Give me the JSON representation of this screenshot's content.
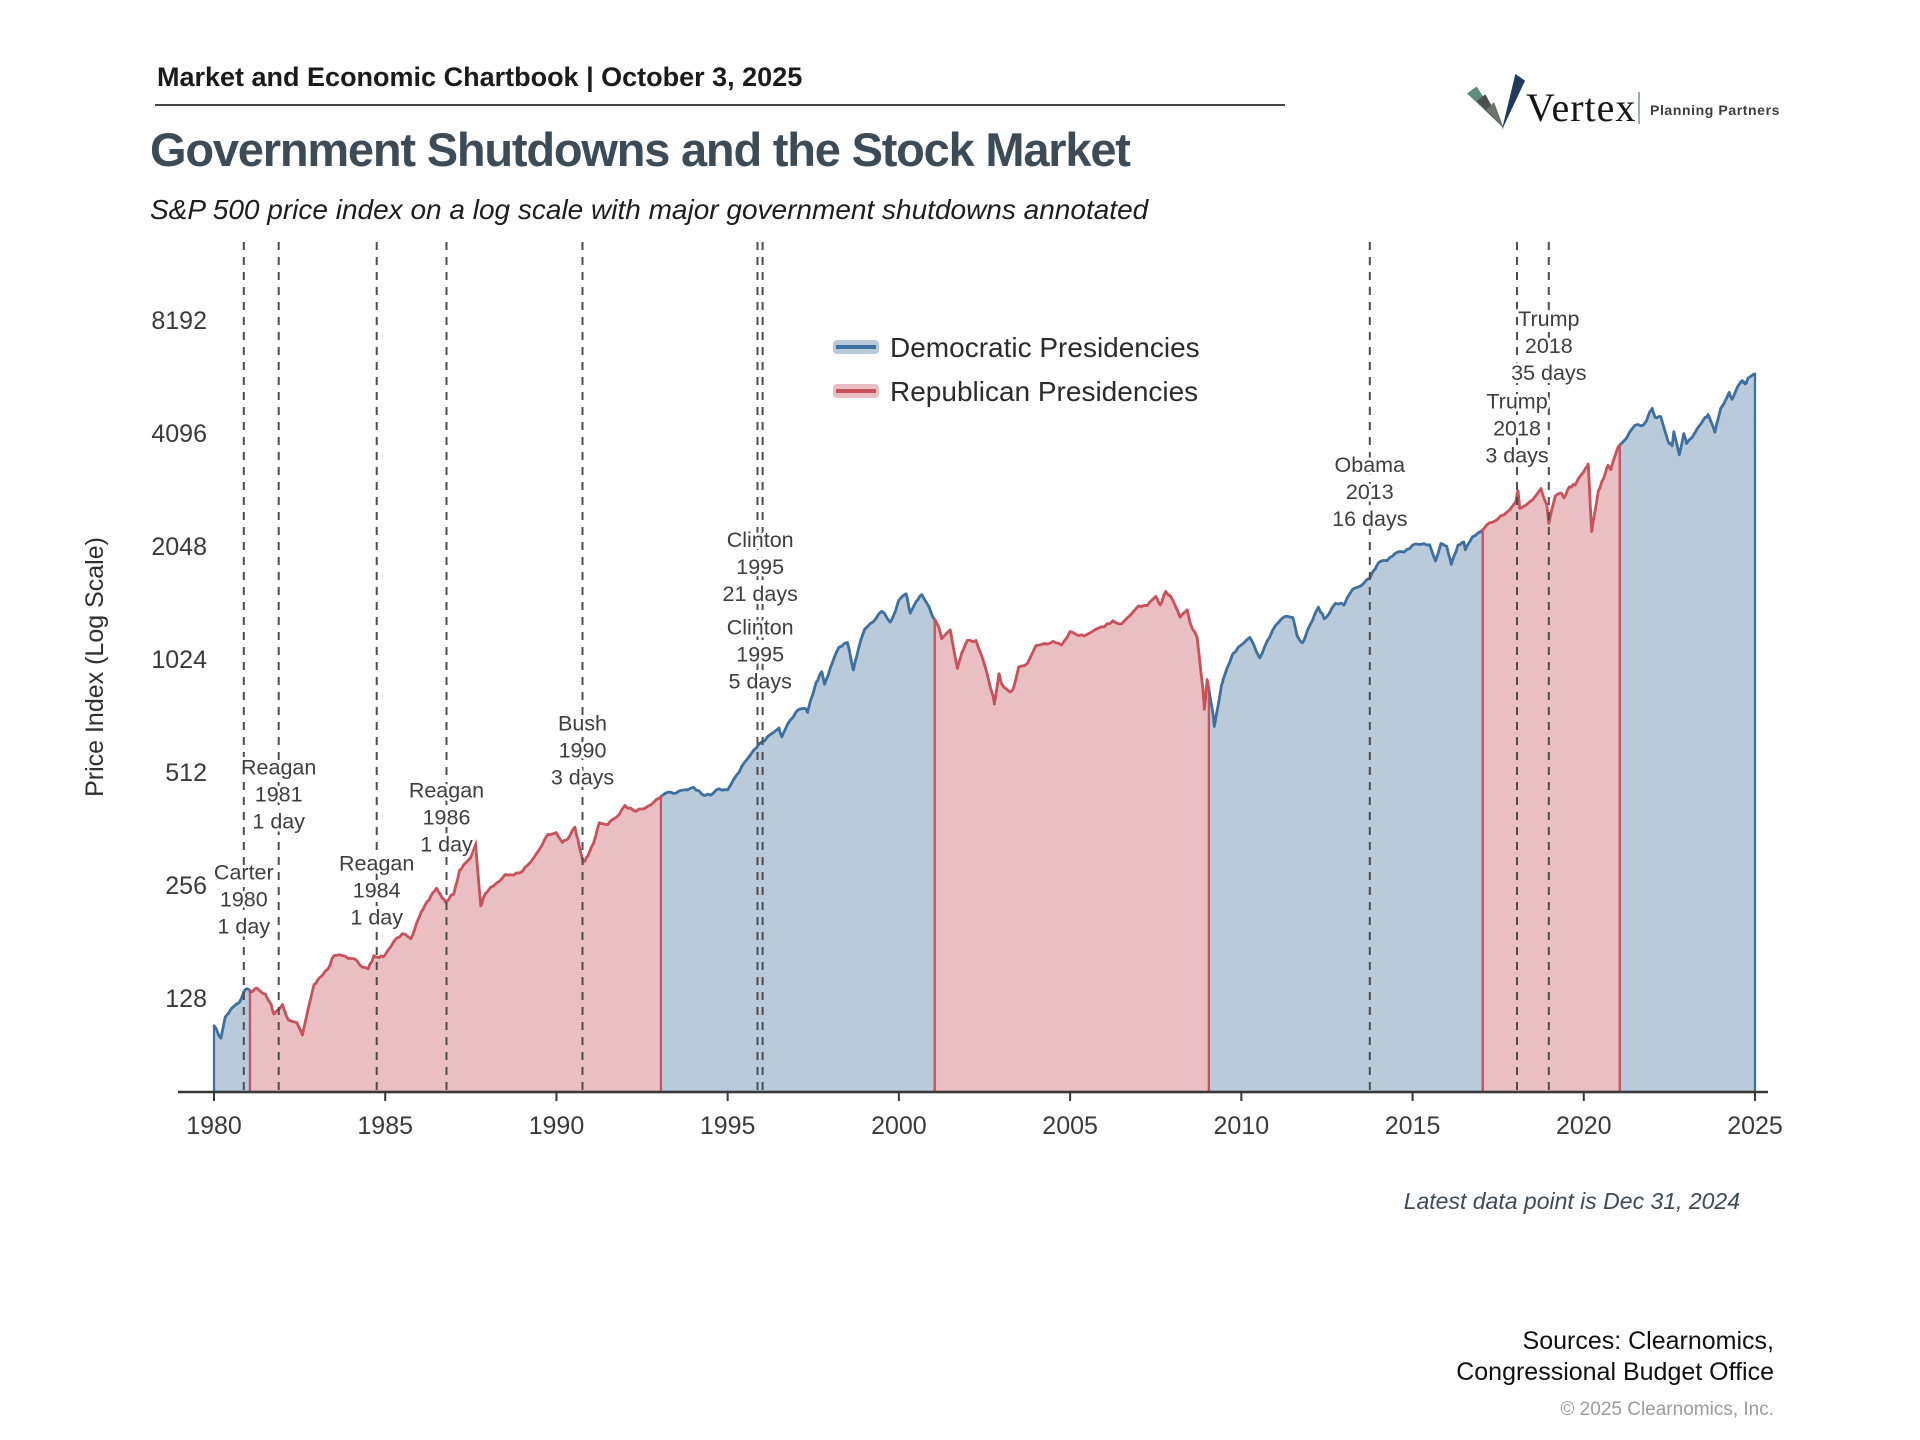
{
  "header": {
    "chartbook_title": "Market and Economic Chartbook | October 3, 2025"
  },
  "logo": {
    "brand": "Vertex",
    "tagline": "Planning Partners"
  },
  "title": "Government Shutdowns and the Stock Market",
  "subtitle": "S&P 500 price index on a log scale with major government shutdowns annotated",
  "footnote": "Latest data point is Dec 31, 2024",
  "sources": {
    "line1": "Sources: Clearnomics,",
    "line2": "Congressional Budget Office",
    "copyright": "© 2025 Clearnomics, Inc."
  },
  "colors": {
    "dem_line": "#3f6f9e",
    "dem_fill": "#b9cada",
    "rep_line": "#c8515a",
    "rep_fill": "#eabfc1",
    "dashed_line": "#4d4d4d",
    "axis": "#383838",
    "title_text": "#3d4b57"
  },
  "chart_data": {
    "type": "area",
    "title": "Government Shutdowns and the Stock Market",
    "subtitle": "S&P 500 price index on a log scale with major government shutdowns annotated",
    "ylabel": "Price Index (Log Scale)",
    "xlabel": "",
    "log_scale": true,
    "grid": false,
    "legend_position": "upper-center-inside",
    "y_ticks": [
      8192,
      4096,
      2048,
      1024,
      512,
      256,
      128
    ],
    "x_ticks": [
      1980,
      1985,
      1990,
      1995,
      2000,
      2005,
      2010,
      2015,
      2020,
      2025
    ],
    "x_range": [
      1980,
      2025
    ],
    "legend": [
      {
        "party": "dem",
        "label": "Democratic Presidencies"
      },
      {
        "party": "rep",
        "label": "Republican Presidencies"
      }
    ],
    "party_periods": [
      {
        "party": "dem",
        "start": 1980.0,
        "end": 1981.05
      },
      {
        "party": "rep",
        "start": 1981.05,
        "end": 1993.05
      },
      {
        "party": "dem",
        "start": 1993.05,
        "end": 2001.05
      },
      {
        "party": "rep",
        "start": 2001.05,
        "end": 2009.05
      },
      {
        "party": "dem",
        "start": 2009.05,
        "end": 2017.05
      },
      {
        "party": "rep",
        "start": 2017.05,
        "end": 2021.05
      },
      {
        "party": "dem",
        "start": 2021.05,
        "end": 2025.0
      }
    ],
    "shutdowns": [
      {
        "president": "Carter",
        "year": "1980",
        "duration": "1 day",
        "line_year": 1980.87,
        "label_year": 1980.87,
        "label_value": 236
      },
      {
        "president": "Reagan",
        "year": "1981",
        "duration": "1 day",
        "line_year": 1981.89,
        "label_year": 1981.89,
        "label_value": 449
      },
      {
        "president": "Reagan",
        "year": "1984",
        "duration": "1 day",
        "line_year": 1984.75,
        "label_year": 1984.75,
        "label_value": 249
      },
      {
        "president": "Reagan",
        "year": "1986",
        "duration": "1 day",
        "line_year": 1986.79,
        "label_year": 1986.79,
        "label_value": 390
      },
      {
        "president": "Bush",
        "year": "1990",
        "duration": "3 days",
        "line_year": 1990.76,
        "label_year": 1990.76,
        "label_value": 587
      },
      {
        "president": "Clinton",
        "year": "1995",
        "duration": "21 days",
        "line_year": 1996.02,
        "label_year": 1995.95,
        "label_value": 1810
      },
      {
        "president": "Clinton",
        "year": "1995",
        "duration": "5 days",
        "line_year": 1995.87,
        "label_year": 1995.95,
        "label_value": 1060
      },
      {
        "president": "Obama",
        "year": "2013",
        "duration": "16 days",
        "line_year": 2013.75,
        "label_year": 2013.75,
        "label_value": 2870
      },
      {
        "president": "Trump",
        "year": "2018",
        "duration": "3 days",
        "line_year": 2018.05,
        "label_year": 2018.05,
        "label_value": 4240
      },
      {
        "president": "Trump",
        "year": "2018",
        "duration": "35 days",
        "line_year": 2018.98,
        "label_year": 2018.98,
        "label_value": 7030
      }
    ],
    "latest_point_note": "Latest data point is Dec 31, 2024",
    "series": [
      [
        1980,
        108
      ],
      [
        1980.2,
        100
      ],
      [
        1980.33,
        114
      ],
      [
        1980.6,
        122
      ],
      [
        1980.75,
        125
      ],
      [
        1980.92,
        135
      ],
      [
        1981.08,
        133
      ],
      [
        1981.25,
        136
      ],
      [
        1981.5,
        131
      ],
      [
        1981.67,
        123
      ],
      [
        1981.75,
        116
      ],
      [
        1982,
        123
      ],
      [
        1982.17,
        112
      ],
      [
        1982.42,
        110
      ],
      [
        1982.58,
        102
      ],
      [
        1982.75,
        120
      ],
      [
        1982.92,
        139
      ],
      [
        1983.08,
        145
      ],
      [
        1983.33,
        153
      ],
      [
        1983.5,
        166
      ],
      [
        1983.75,
        166
      ],
      [
        1983.92,
        163
      ],
      [
        1984.08,
        163
      ],
      [
        1984.25,
        157
      ],
      [
        1984.5,
        153
      ],
      [
        1984.67,
        166
      ],
      [
        1984.83,
        164
      ],
      [
        1985,
        167
      ],
      [
        1985.25,
        181
      ],
      [
        1985.5,
        190
      ],
      [
        1985.75,
        184
      ],
      [
        1986,
        211
      ],
      [
        1986.17,
        227
      ],
      [
        1986.33,
        239
      ],
      [
        1986.5,
        251
      ],
      [
        1986.67,
        236
      ],
      [
        1986.75,
        231
      ],
      [
        1987,
        242
      ],
      [
        1987.17,
        280
      ],
      [
        1987.33,
        292
      ],
      [
        1987.5,
        303
      ],
      [
        1987.63,
        336
      ],
      [
        1987.79,
        225
      ],
      [
        1987.9,
        240
      ],
      [
        1988,
        247
      ],
      [
        1988.25,
        259
      ],
      [
        1988.5,
        273
      ],
      [
        1988.75,
        272
      ],
      [
        1989,
        278
      ],
      [
        1989.25,
        295
      ],
      [
        1989.5,
        318
      ],
      [
        1989.75,
        349
      ],
      [
        1990,
        353
      ],
      [
        1990.17,
        332
      ],
      [
        1990.33,
        339
      ],
      [
        1990.54,
        365
      ],
      [
        1990.67,
        323
      ],
      [
        1990.79,
        295
      ],
      [
        1990.92,
        306
      ],
      [
        1991.08,
        330
      ],
      [
        1991.25,
        375
      ],
      [
        1991.5,
        371
      ],
      [
        1991.75,
        388
      ],
      [
        1992,
        417
      ],
      [
        1992.25,
        404
      ],
      [
        1992.5,
        408
      ],
      [
        1992.75,
        418
      ],
      [
        1993,
        436
      ],
      [
        1993.25,
        452
      ],
      [
        1993.5,
        450
      ],
      [
        1993.75,
        459
      ],
      [
        1994,
        466
      ],
      [
        1994.25,
        446
      ],
      [
        1994.5,
        444
      ],
      [
        1994.75,
        462
      ],
      [
        1995,
        459
      ],
      [
        1995.25,
        501
      ],
      [
        1995.5,
        544
      ],
      [
        1995.75,
        584
      ],
      [
        1996,
        616
      ],
      [
        1996.25,
        645
      ],
      [
        1996.5,
        671
      ],
      [
        1996.58,
        635
      ],
      [
        1996.75,
        687
      ],
      [
        1997,
        741
      ],
      [
        1997.25,
        757
      ],
      [
        1997.33,
        738
      ],
      [
        1997.58,
        885
      ],
      [
        1997.75,
        947
      ],
      [
        1997.83,
        877
      ],
      [
        1998,
        970
      ],
      [
        1998.25,
        1101
      ],
      [
        1998.5,
        1133
      ],
      [
        1998.67,
        957
      ],
      [
        1998.83,
        1099
      ],
      [
        1999,
        1229
      ],
      [
        1999.25,
        1286
      ],
      [
        1999.5,
        1373
      ],
      [
        1999.75,
        1283
      ],
      [
        1999.92,
        1389
      ],
      [
        2000,
        1469
      ],
      [
        2000.21,
        1527
      ],
      [
        2000.33,
        1356
      ],
      [
        2000.5,
        1455
      ],
      [
        2000.67,
        1520
      ],
      [
        2000.83,
        1436
      ],
      [
        2001,
        1320
      ],
      [
        2001.17,
        1240
      ],
      [
        2001.25,
        1160
      ],
      [
        2001.5,
        1224
      ],
      [
        2001.71,
        966
      ],
      [
        2001.83,
        1059
      ],
      [
        2002,
        1148
      ],
      [
        2002.25,
        1147
      ],
      [
        2002.5,
        990
      ],
      [
        2002.75,
        815
      ],
      [
        2002.79,
        777
      ],
      [
        2002.92,
        936
      ],
      [
        2003,
        880
      ],
      [
        2003.21,
        841
      ],
      [
        2003.33,
        848
      ],
      [
        2003.5,
        975
      ],
      [
        2003.75,
        996
      ],
      [
        2004,
        1112
      ],
      [
        2004.25,
        1126
      ],
      [
        2004.5,
        1141
      ],
      [
        2004.75,
        1115
      ],
      [
        2005,
        1212
      ],
      [
        2005.25,
        1181
      ],
      [
        2005.5,
        1191
      ],
      [
        2005.75,
        1229
      ],
      [
        2006,
        1248
      ],
      [
        2006.25,
        1295
      ],
      [
        2006.5,
        1270
      ],
      [
        2006.75,
        1336
      ],
      [
        2007,
        1418
      ],
      [
        2007.25,
        1421
      ],
      [
        2007.5,
        1503
      ],
      [
        2007.63,
        1427
      ],
      [
        2007.79,
        1549
      ],
      [
        2008,
        1468
      ],
      [
        2008.21,
        1323
      ],
      [
        2008.42,
        1385
      ],
      [
        2008.5,
        1280
      ],
      [
        2008.71,
        1166
      ],
      [
        2008.88,
        850
      ],
      [
        2008.92,
        752
      ],
      [
        2009,
        903
      ],
      [
        2009.17,
        735
      ],
      [
        2009.21,
        677
      ],
      [
        2009.42,
        872
      ],
      [
        2009.5,
        919
      ],
      [
        2009.75,
        1057
      ],
      [
        2010,
        1115
      ],
      [
        2010.25,
        1169
      ],
      [
        2010.54,
        1031
      ],
      [
        2010.75,
        1141
      ],
      [
        2011,
        1258
      ],
      [
        2011.25,
        1326
      ],
      [
        2011.5,
        1321
      ],
      [
        2011.63,
        1179
      ],
      [
        2011.79,
        1131
      ],
      [
        2012,
        1258
      ],
      [
        2012.25,
        1408
      ],
      [
        2012.42,
        1310
      ],
      [
        2012.58,
        1362
      ],
      [
        2012.75,
        1441
      ],
      [
        2013,
        1426
      ],
      [
        2013.25,
        1569
      ],
      [
        2013.5,
        1606
      ],
      [
        2013.75,
        1682
      ],
      [
        2014,
        1848
      ],
      [
        2014.25,
        1872
      ],
      [
        2014.5,
        1960
      ],
      [
        2014.75,
        1972
      ],
      [
        2015,
        2059
      ],
      [
        2015.25,
        2068
      ],
      [
        2015.5,
        2063
      ],
      [
        2015.67,
        1868
      ],
      [
        2015.83,
        2080
      ],
      [
        2016,
        2044
      ],
      [
        2016.13,
        1829
      ],
      [
        2016.33,
        2060
      ],
      [
        2016.5,
        2099
      ],
      [
        2016.54,
        2001
      ],
      [
        2016.75,
        2168
      ],
      [
        2017,
        2239
      ],
      [
        2017.25,
        2363
      ],
      [
        2017.5,
        2423
      ],
      [
        2017.75,
        2519
      ],
      [
        2018,
        2674
      ],
      [
        2018.08,
        2873
      ],
      [
        2018.13,
        2581
      ],
      [
        2018.33,
        2641
      ],
      [
        2018.5,
        2718
      ],
      [
        2018.75,
        2914
      ],
      [
        2018.92,
        2633
      ],
      [
        2018.98,
        2351
      ],
      [
        2019.17,
        2784
      ],
      [
        2019.33,
        2834
      ],
      [
        2019.42,
        2752
      ],
      [
        2019.58,
        2942
      ],
      [
        2019.75,
        2977
      ],
      [
        2020,
        3231
      ],
      [
        2020.13,
        3386
      ],
      [
        2020.23,
        2237
      ],
      [
        2020.42,
        2863
      ],
      [
        2020.58,
        3100
      ],
      [
        2020.71,
        3363
      ],
      [
        2020.79,
        3270
      ],
      [
        2021,
        3756
      ],
      [
        2021.25,
        3973
      ],
      [
        2021.5,
        4298
      ],
      [
        2021.75,
        4308
      ],
      [
        2022,
        4766
      ],
      [
        2022.08,
        4516
      ],
      [
        2022.25,
        4530
      ],
      [
        2022.46,
        3901
      ],
      [
        2022.58,
        3785
      ],
      [
        2022.63,
        4130
      ],
      [
        2022.79,
        3586
      ],
      [
        2022.92,
        4080
      ],
      [
        2023,
        3840
      ],
      [
        2023.25,
        4109
      ],
      [
        2023.5,
        4450
      ],
      [
        2023.63,
        4589
      ],
      [
        2023.83,
        4117
      ],
      [
        2024,
        4770
      ],
      [
        2024.25,
        5254
      ],
      [
        2024.33,
        5036
      ],
      [
        2024.5,
        5460
      ],
      [
        2024.63,
        5648
      ],
      [
        2024.71,
        5528
      ],
      [
        2024.83,
        5762
      ],
      [
        2025,
        5882
      ]
    ]
  }
}
